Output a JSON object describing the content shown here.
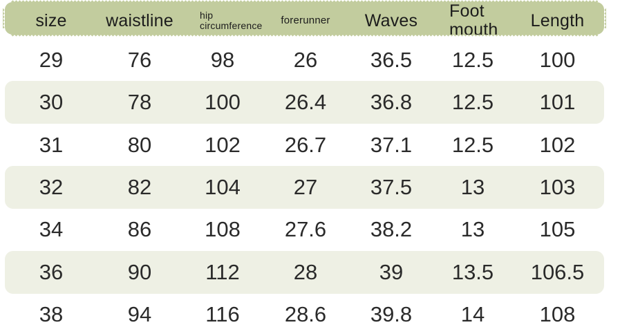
{
  "colors": {
    "header_bg": "#c2cc9e",
    "row_alt_bg": "#eef0e4",
    "row_bg": "#ffffff",
    "header_text": "#1c1c1c",
    "cell_text": "#2a2a2a"
  },
  "chart_data": {
    "type": "table",
    "columns": [
      "size",
      "waistline",
      "hip circumference",
      "forerunner",
      "Waves",
      "Foot mouth",
      "Length"
    ],
    "rows": [
      [
        "29",
        "76",
        "98",
        "26",
        "36.5",
        "12.5",
        "100"
      ],
      [
        "30",
        "78",
        "100",
        "26.4",
        "36.8",
        "12.5",
        "101"
      ],
      [
        "31",
        "80",
        "102",
        "26.7",
        "37.1",
        "12.5",
        "102"
      ],
      [
        "32",
        "82",
        "104",
        "27",
        "37.5",
        "13",
        "103"
      ],
      [
        "34",
        "86",
        "108",
        "27.6",
        "38.2",
        "13",
        "105"
      ],
      [
        "36",
        "90",
        "112",
        "28",
        "39",
        "13.5",
        "106.5"
      ],
      [
        "38",
        "94",
        "116",
        "28.6",
        "39.8",
        "14",
        "108"
      ]
    ],
    "layout_hints": {
      "striped_row_indices": [
        1,
        3,
        5
      ],
      "header_style": "serrated-stamp-bar"
    }
  }
}
